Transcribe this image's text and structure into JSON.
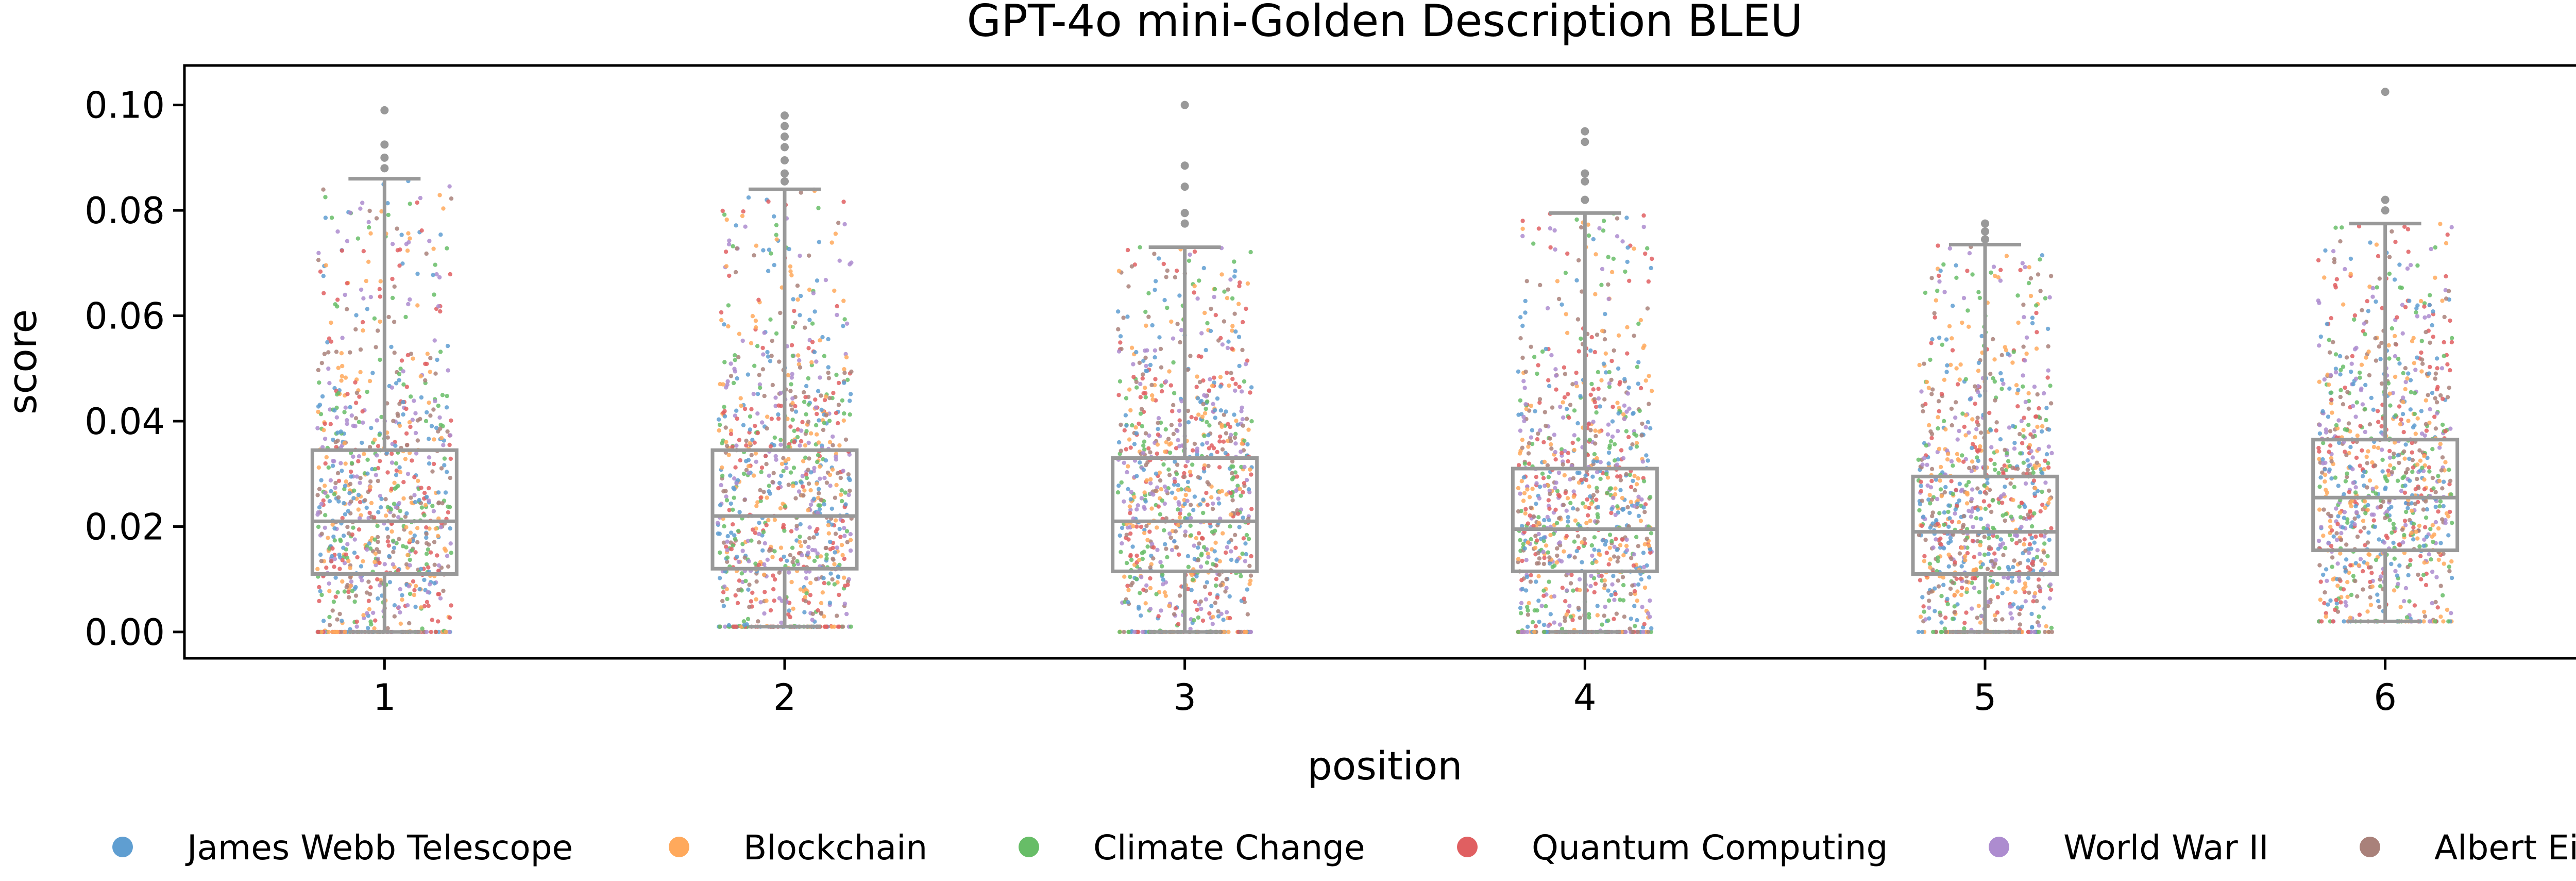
{
  "chart_data": {
    "type": "box",
    "title": "GPT-4o mini-Golden Description BLEU",
    "xlabel": "position",
    "ylabel": "score",
    "categories": [
      "1",
      "2",
      "3",
      "4",
      "5",
      "6"
    ],
    "y_ticks": [
      "0.00",
      "0.02",
      "0.04",
      "0.06",
      "0.08",
      "0.10"
    ],
    "ylim": [
      -0.005,
      0.1075
    ],
    "grid": false,
    "legend_position": "bottom",
    "boxes": [
      {
        "position": "1",
        "whisker_low": 0.0,
        "q1": 0.011,
        "median": 0.021,
        "q3": 0.0345,
        "whisker_high": 0.086,
        "outliers": [
          0.088,
          0.09,
          0.0925,
          0.099
        ]
      },
      {
        "position": "2",
        "whisker_low": 0.001,
        "q1": 0.012,
        "median": 0.022,
        "q3": 0.0345,
        "whisker_high": 0.084,
        "outliers": [
          0.0855,
          0.087,
          0.0895,
          0.092,
          0.094,
          0.096,
          0.098
        ]
      },
      {
        "position": "3",
        "whisker_low": 0.0,
        "q1": 0.0115,
        "median": 0.021,
        "q3": 0.033,
        "whisker_high": 0.073,
        "outliers": [
          0.0775,
          0.0795,
          0.0845,
          0.0885,
          0.1
        ]
      },
      {
        "position": "4",
        "whisker_low": 0.0,
        "q1": 0.0115,
        "median": 0.0195,
        "q3": 0.031,
        "whisker_high": 0.0795,
        "outliers": [
          0.082,
          0.0855,
          0.087,
          0.093,
          0.095
        ]
      },
      {
        "position": "5",
        "whisker_low": 0.0,
        "q1": 0.011,
        "median": 0.019,
        "q3": 0.0295,
        "whisker_high": 0.0735,
        "outliers": [
          0.0745,
          0.076,
          0.0775
        ]
      },
      {
        "position": "6",
        "whisker_low": 0.002,
        "q1": 0.0155,
        "median": 0.0255,
        "q3": 0.0365,
        "whisker_high": 0.0775,
        "outliers": [
          0.08,
          0.082,
          0.1025
        ]
      }
    ],
    "series": [
      {
        "name": "James Webb Telescope",
        "color": "#5f9ed1"
      },
      {
        "name": "Blockchain",
        "color": "#ffa95c"
      },
      {
        "name": "Climate Change",
        "color": "#67bd67"
      },
      {
        "name": "Quantum Computing",
        "color": "#e05f61"
      },
      {
        "name": "World War II",
        "color": "#ad8ccf"
      },
      {
        "name": "Albert Einstein",
        "color": "#a9817a"
      }
    ],
    "box_color": "#999999"
  }
}
